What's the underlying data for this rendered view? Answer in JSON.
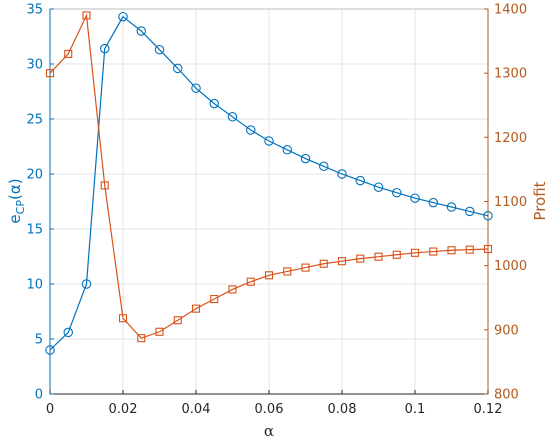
{
  "chart_data": {
    "type": "line",
    "xlabel": "α",
    "x_ticks": [
      "0",
      "0.02",
      "0.04",
      "0.06",
      "0.08",
      "0.1",
      "0.12"
    ],
    "xlim": [
      0,
      0.12
    ],
    "grid": true,
    "y_left": {
      "label": "e_CP(α)",
      "label_main": "e",
      "label_sub": "CP",
      "label_tail": "(α)",
      "ylim": [
        0,
        35
      ],
      "ticks": [
        "0",
        "5",
        "10",
        "15",
        "20",
        "25",
        "30",
        "35"
      ],
      "color": "#0072BD"
    },
    "y_right": {
      "label": "Profit",
      "ylim": [
        800,
        1400
      ],
      "ticks": [
        "800",
        "900",
        "1000",
        "1100",
        "1200",
        "1300",
        "1400"
      ],
      "color": "#D95319"
    },
    "x": [
      0,
      0.005,
      0.01,
      0.015,
      0.02,
      0.025,
      0.03,
      0.035,
      0.04,
      0.045,
      0.05,
      0.055,
      0.06,
      0.065,
      0.07,
      0.075,
      0.08,
      0.085,
      0.09,
      0.095,
      0.1,
      0.105,
      0.11,
      0.115,
      0.12
    ],
    "series": [
      {
        "axis": "left",
        "marker": "circle",
        "color": "#0072BD",
        "values": [
          4.0,
          5.6,
          10.0,
          31.4,
          34.3,
          33.0,
          31.3,
          29.6,
          27.8,
          26.4,
          25.2,
          24.0,
          23.0,
          22.2,
          21.4,
          20.7,
          20.0,
          19.4,
          18.8,
          18.3,
          17.8,
          17.4,
          17.0,
          16.6,
          16.2
        ]
      },
      {
        "axis": "right",
        "marker": "square",
        "color": "#D95319",
        "values": [
          1300,
          1330,
          1390,
          1125,
          918,
          887,
          897,
          915,
          933,
          948,
          963,
          975,
          985,
          991,
          997,
          1003,
          1007,
          1011,
          1014,
          1017,
          1020,
          1022,
          1024,
          1025,
          1026
        ]
      }
    ]
  }
}
